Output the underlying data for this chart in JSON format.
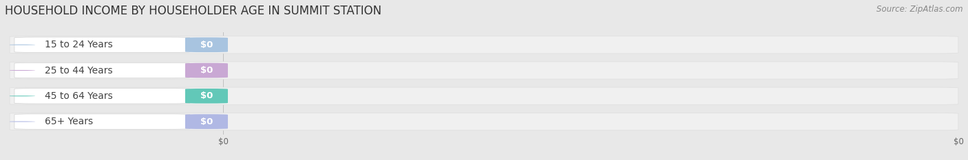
{
  "title": "HOUSEHOLD INCOME BY HOUSEHOLDER AGE IN SUMMIT STATION",
  "source": "Source: ZipAtlas.com",
  "categories": [
    "15 to 24 Years",
    "25 to 44 Years",
    "45 to 64 Years",
    "65+ Years"
  ],
  "values": [
    0,
    0,
    0,
    0
  ],
  "bar_colors": [
    "#a8c4e0",
    "#c9a8d4",
    "#62c8b8",
    "#b0b8e4"
  ],
  "background_color": "#e8e8e8",
  "bar_bg_color": "#f0f0f0",
  "bar_bg_edge_color": "#e0e0e0",
  "white_pill_color": "#ffffff",
  "title_fontsize": 12,
  "source_fontsize": 8.5,
  "label_fontsize": 10,
  "value_fontsize": 9.5
}
